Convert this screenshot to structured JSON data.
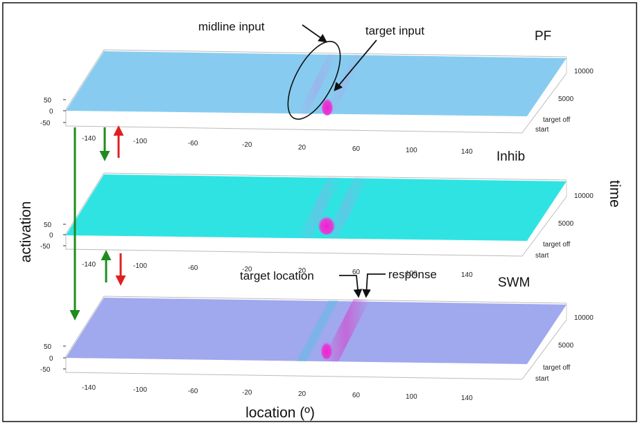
{
  "panels": [
    {
      "label": "PF",
      "surface_color": "#8fd0ee",
      "fill": "#87ccf0"
    },
    {
      "label": "Inhib",
      "surface_color": "#33e6e6",
      "fill": "#2fe3e3"
    },
    {
      "label": "SWM",
      "surface_color": "#9fa8f0",
      "fill": "#a0a8ee"
    }
  ],
  "location_ticks": [
    "-140",
    "-100",
    "-60",
    "-20",
    "20",
    "60",
    "100",
    "140"
  ],
  "activation_ticks": [
    "50",
    "0",
    "-50"
  ],
  "time_ticks": [
    "10000",
    "5000",
    "target off",
    "start"
  ],
  "annotations": {
    "midline_input": "midline input",
    "target_input": "target input",
    "target_location": "target location",
    "response": "response"
  },
  "axis_titles": {
    "x": "location (º)",
    "y": "activation",
    "z": "time"
  },
  "colors": {
    "excitatory_arrow": "#1e8c1e",
    "inhibitory_arrow": "#e02020",
    "peak": "#e020c8"
  }
}
